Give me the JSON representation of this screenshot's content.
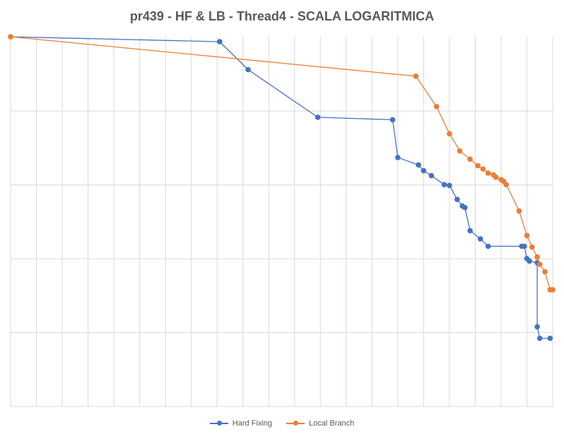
{
  "chart_data": {
    "type": "line",
    "title": "pr439 - HF & LB - Thread4 - SCALA LOGARITMICA",
    "xlabel": "",
    "ylabel": "",
    "y_scale": "log",
    "x_axis_labels": "none",
    "y_axis_labels": "none",
    "grid": "vertical and horizontal",
    "legend_position": "bottom",
    "series": [
      {
        "name": "Hard Fixing",
        "color": "#4472C4",
        "points": [
          [
            0,
            0.0
          ],
          [
            81,
            0.06
          ],
          [
            92,
            0.4
          ],
          [
            119,
            0.98
          ],
          [
            148,
            1.01
          ],
          [
            150,
            1.47
          ],
          [
            158,
            1.56
          ],
          [
            160,
            1.63
          ],
          [
            163,
            1.69
          ],
          [
            168,
            1.8
          ],
          [
            170,
            1.81
          ],
          [
            173,
            1.98
          ],
          [
            175,
            2.06
          ],
          [
            176,
            2.08
          ],
          [
            178,
            2.36
          ],
          [
            182,
            2.46
          ],
          [
            185,
            2.55
          ],
          [
            198,
            2.55
          ],
          [
            199,
            2.55
          ],
          [
            200,
            2.7
          ],
          [
            201,
            2.73
          ],
          [
            204,
            2.75
          ],
          [
            204,
            3.53
          ],
          [
            205,
            3.67
          ],
          [
            209,
            3.67
          ]
        ]
      },
      {
        "name": "Local Branch",
        "color": "#ED7D31",
        "points": [
          [
            0,
            0.0
          ],
          [
            157,
            0.48
          ],
          [
            165,
            0.85
          ],
          [
            170,
            1.18
          ],
          [
            174,
            1.39
          ],
          [
            178,
            1.49
          ],
          [
            181,
            1.57
          ],
          [
            183,
            1.61
          ],
          [
            185,
            1.66
          ],
          [
            187,
            1.68
          ],
          [
            188,
            1.71
          ],
          [
            190,
            1.74
          ],
          [
            191,
            1.76
          ],
          [
            192,
            1.8
          ],
          [
            197,
            2.12
          ],
          [
            200,
            2.42
          ],
          [
            202,
            2.56
          ],
          [
            204,
            2.68
          ],
          [
            205,
            2.77
          ],
          [
            207,
            2.86
          ],
          [
            209,
            3.08
          ],
          [
            210,
            3.08
          ]
        ]
      }
    ]
  },
  "legend": {
    "items": [
      {
        "label": "Hard Fixing",
        "color": "#4472C4"
      },
      {
        "label": "Local Branch",
        "color": "#ED7D31"
      }
    ]
  }
}
